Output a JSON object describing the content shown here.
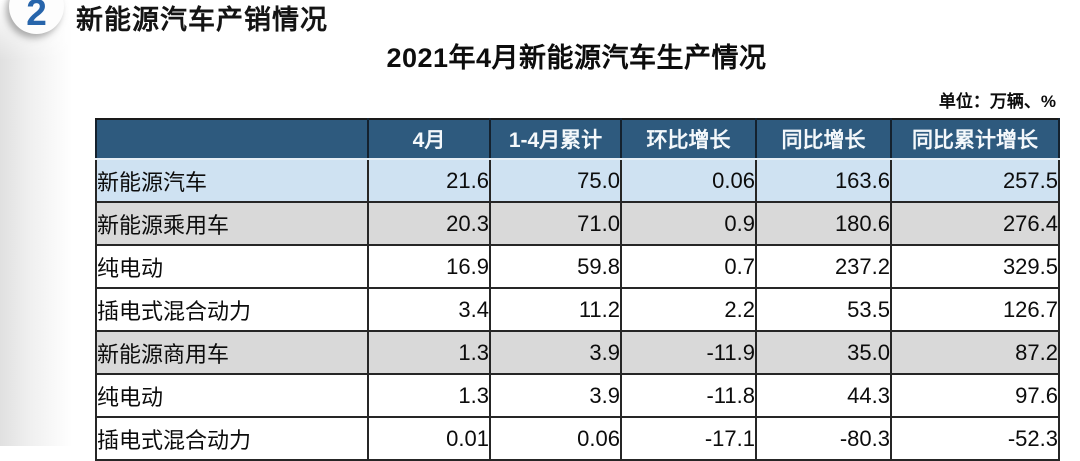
{
  "badge": {
    "number": "2"
  },
  "header": {
    "section_title": "新能源汽车产销情况"
  },
  "main": {
    "table_title": "2021年4月新能源汽车生产情况",
    "unit_note": "单位：万辆、%"
  },
  "colors": {
    "header_bg": "#2e5a7e",
    "highlight_row": "#cfe2f2",
    "group_row": "#d9d9d9",
    "badge_blue": "#2765ab",
    "border_dark": "#262626"
  },
  "chart_data": {
    "type": "table",
    "title": "2021年4月新能源汽车生产情况",
    "unit": "万辆、%",
    "columns": [
      "",
      "4月",
      "1-4月累计",
      "环比增长",
      "同比增长",
      "同比累计增长"
    ],
    "rows": [
      {
        "label": "新能源汽车",
        "indent": 0,
        "row_style": "highlight",
        "values": [
          "21.6",
          "75.0",
          "0.06",
          "163.6",
          "257.5"
        ]
      },
      {
        "label": "新能源乘用车",
        "indent": 1,
        "row_style": "group",
        "values": [
          "20.3",
          "71.0",
          "0.9",
          "180.6",
          "276.4"
        ]
      },
      {
        "label": "纯电动",
        "indent": 2,
        "row_style": "plain",
        "values": [
          "16.9",
          "59.8",
          "0.7",
          "237.2",
          "329.5"
        ]
      },
      {
        "label": "插电式混合动力",
        "indent": 2,
        "row_style": "plain",
        "values": [
          "3.4",
          "11.2",
          "2.2",
          "53.5",
          "126.7"
        ]
      },
      {
        "label": "新能源商用车",
        "indent": 1,
        "row_style": "group",
        "values": [
          "1.3",
          "3.9",
          "-11.9",
          "35.0",
          "87.2"
        ]
      },
      {
        "label": "纯电动",
        "indent": 2,
        "row_style": "plain",
        "values": [
          "1.3",
          "3.9",
          "-11.8",
          "44.3",
          "97.6"
        ]
      },
      {
        "label": "插电式混合动力",
        "indent": 2,
        "row_style": "plain",
        "values": [
          "0.01",
          "0.06",
          "-17.1",
          "-80.3",
          "-52.3"
        ]
      }
    ]
  }
}
